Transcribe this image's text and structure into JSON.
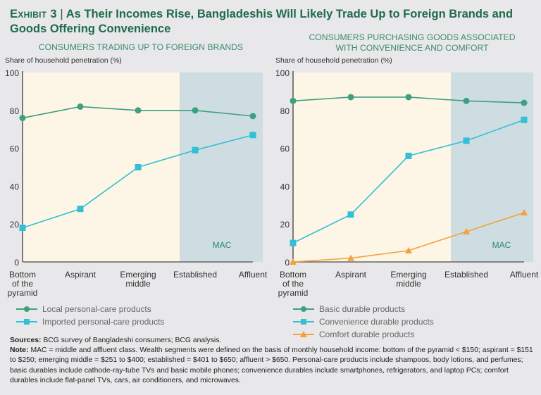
{
  "title": {
    "exhibit": "Exhibit 3",
    "separator": "|",
    "text": "As Their Incomes Rise, Bangladeshis Will Likely Trade Up to Foreign Brands and Goods Offering Convenience"
  },
  "colors": {
    "title": "#1f6a4b",
    "green": "#3fa080",
    "cyan": "#33bfd6",
    "orange": "#f5a03a",
    "cream": "#fdf6e6",
    "mac": "#cddde2"
  },
  "chart_data": [
    {
      "type": "line",
      "title": "CONSUMERS TRADING UP TO FOREIGN BRANDS",
      "ylabel": "Share of household penetration (%)",
      "xlabel": "",
      "ylim": [
        0,
        100
      ],
      "yticks": [
        0,
        20,
        40,
        60,
        80,
        100
      ],
      "categories": [
        "Bottom of the pyramid",
        "Aspirant",
        "Emerging middle",
        "Established",
        "Affluent"
      ],
      "category_lines": [
        [
          "Bottom",
          "of the",
          "pyramid"
        ],
        [
          "Aspirant"
        ],
        [
          "Emerging",
          "middle"
        ],
        [
          "Established"
        ],
        [
          "Affluent"
        ]
      ],
      "shaded_region": {
        "label": "MAC",
        "from": "Established",
        "to": "Affluent"
      },
      "series": [
        {
          "name": "Local personal-care products",
          "marker": "circle",
          "color": "#3fa080",
          "values": [
            76,
            82,
            80,
            80,
            77
          ]
        },
        {
          "name": "Imported personal-care products",
          "marker": "square",
          "color": "#33bfd6",
          "values": [
            18,
            28,
            50,
            59,
            67
          ]
        }
      ],
      "legend": "bottom-left"
    },
    {
      "type": "line",
      "title": "CONSUMERS PURCHASING GOODS ASSOCIATED WITH CONVENIENCE AND COMFORT",
      "title_lines": [
        "CONSUMERS PURCHASING GOODS ASSOCIATED",
        "WITH CONVENIENCE AND COMFORT"
      ],
      "ylabel": "Share of household penetration (%)",
      "xlabel": "",
      "ylim": [
        0,
        100
      ],
      "yticks": [
        0,
        20,
        40,
        60,
        80,
        100
      ],
      "categories": [
        "Bottom of the pyramid",
        "Aspirant",
        "Emerging middle",
        "Established",
        "Affluent"
      ],
      "category_lines": [
        [
          "Bottom",
          "of the",
          "pyramid"
        ],
        [
          "Aspirant"
        ],
        [
          "Emerging",
          "middle"
        ],
        [
          "Established"
        ],
        [
          "Affluent"
        ]
      ],
      "shaded_region": {
        "label": "MAC",
        "from": "Established",
        "to": "Affluent"
      },
      "series": [
        {
          "name": "Basic durable products",
          "marker": "circle",
          "color": "#3fa080",
          "values": [
            85,
            87,
            87,
            85,
            84
          ]
        },
        {
          "name": "Convenience durable products",
          "marker": "square",
          "color": "#33bfd6",
          "values": [
            10,
            25,
            56,
            64,
            75
          ]
        },
        {
          "name": "Comfort durable products",
          "marker": "triangle",
          "color": "#f5a03a",
          "values": [
            0,
            2,
            6,
            16,
            26
          ]
        }
      ],
      "legend": "bottom-left"
    }
  ],
  "notes": {
    "sources_label": "Sources:",
    "sources_text": " BCG survey of Bangladeshi consumers; BCG analysis.",
    "note_label": "Note:",
    "note_text": " MAC = middle and affluent class. Wealth segments were defined on the basis of monthly household income: bottom of the pyramid < $150; aspirant = $151 to $250; emerging middle = $251 to $400; established = $401 to $650; affluent > $650. Personal-care products include shampoos, body lotions, and perfumes; basic durables include cathode-ray-tube TVs and basic mobile phones; convenience durables include smartphones, refrigerators, and laptop PCs; comfort durables include flat-panel TVs, cars, air conditioners, and microwaves."
  }
}
